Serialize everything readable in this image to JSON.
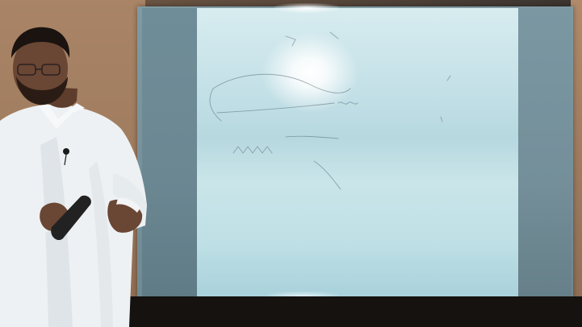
{
  "scene": {
    "colors": {
      "wall": "#a07e63",
      "board_frame": "#6f8a94",
      "projection": "#c6e2e8",
      "shirt": "#eef1f3",
      "skin": "#6a4634",
      "hair": "#1a1310",
      "remote": "#222222",
      "floor": "#15120f"
    },
    "objects": {
      "presenter": "person-standing",
      "remote": "remote-control",
      "microphone": "lapel-microphone",
      "screen": "projection-screen",
      "drawing": "faint-sketch"
    }
  }
}
